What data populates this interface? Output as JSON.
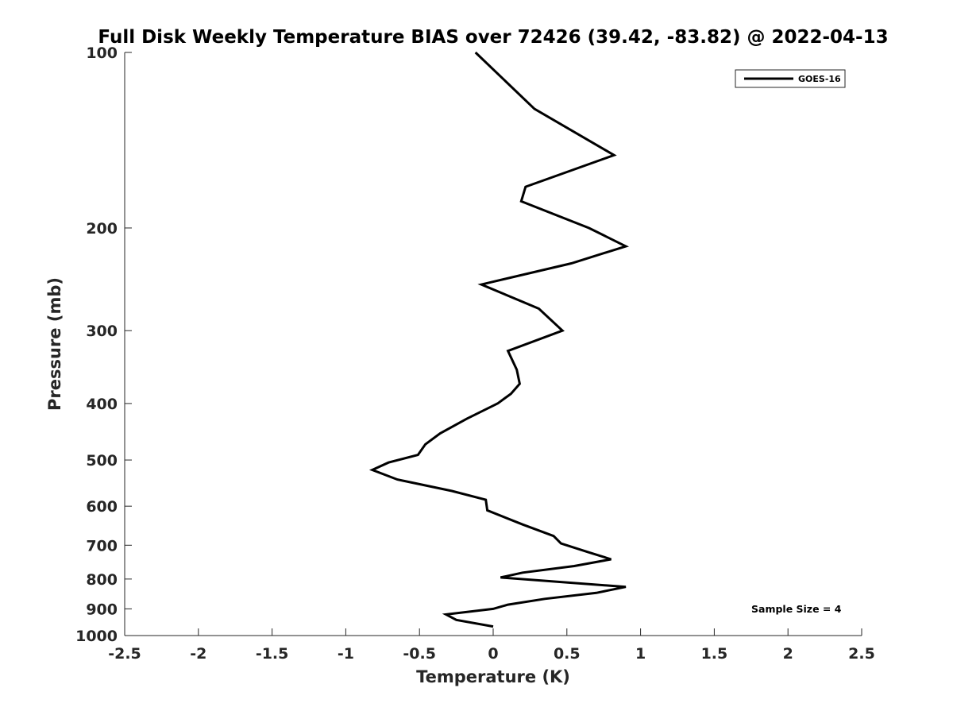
{
  "chart_data": {
    "type": "line",
    "title": "Full Disk Weekly Temperature BIAS over 72426 (39.42, -83.82) @ 2022-04-13",
    "xlabel": "Temperature (K)",
    "ylabel": "Pressure (mb)",
    "xlim": [
      -2.5,
      2.5
    ],
    "ylim": [
      100,
      1000
    ],
    "y_scale": "log",
    "y_reversed": true,
    "x_ticks": [
      "-2.5",
      "-2",
      "-1.5",
      "-1",
      "-0.5",
      "0",
      "0.5",
      "1",
      "1.5",
      "2",
      "2.5"
    ],
    "y_ticks": [
      "100",
      "200",
      "300",
      "400",
      "500",
      "600",
      "700",
      "800",
      "900",
      "1000"
    ],
    "grid": false,
    "legend": {
      "position": "top-right",
      "entries": [
        "GOES-16"
      ]
    },
    "annotation": "Sample Size = 4",
    "series": [
      {
        "name": "GOES-16",
        "color": "#000000",
        "points": [
          {
            "x": -0.12,
            "y": 100
          },
          {
            "x": 0.28,
            "y": 125
          },
          {
            "x": 0.82,
            "y": 150
          },
          {
            "x": 0.22,
            "y": 170
          },
          {
            "x": 0.19,
            "y": 180
          },
          {
            "x": 0.65,
            "y": 200
          },
          {
            "x": 0.9,
            "y": 215
          },
          {
            "x": 0.53,
            "y": 230
          },
          {
            "x": -0.08,
            "y": 250
          },
          {
            "x": 0.31,
            "y": 275
          },
          {
            "x": 0.47,
            "y": 300
          },
          {
            "x": 0.1,
            "y": 325
          },
          {
            "x": 0.16,
            "y": 350
          },
          {
            "x": 0.18,
            "y": 370
          },
          {
            "x": 0.12,
            "y": 385
          },
          {
            "x": 0.03,
            "y": 400
          },
          {
            "x": -0.18,
            "y": 425
          },
          {
            "x": -0.36,
            "y": 450
          },
          {
            "x": -0.46,
            "y": 470
          },
          {
            "x": -0.51,
            "y": 490
          },
          {
            "x": -0.71,
            "y": 505
          },
          {
            "x": -0.82,
            "y": 520
          },
          {
            "x": -0.65,
            "y": 540
          },
          {
            "x": -0.28,
            "y": 565
          },
          {
            "x": -0.05,
            "y": 585
          },
          {
            "x": -0.04,
            "y": 610
          },
          {
            "x": 0.2,
            "y": 645
          },
          {
            "x": 0.41,
            "y": 675
          },
          {
            "x": 0.46,
            "y": 695
          },
          {
            "x": 0.65,
            "y": 720
          },
          {
            "x": 0.8,
            "y": 740
          },
          {
            "x": 0.55,
            "y": 760
          },
          {
            "x": 0.2,
            "y": 780
          },
          {
            "x": 0.05,
            "y": 795
          },
          {
            "x": 0.9,
            "y": 825
          },
          {
            "x": 0.7,
            "y": 845
          },
          {
            "x": 0.35,
            "y": 865
          },
          {
            "x": 0.1,
            "y": 885
          },
          {
            "x": 0.0,
            "y": 900
          },
          {
            "x": -0.32,
            "y": 920
          },
          {
            "x": -0.25,
            "y": 940
          },
          {
            "x": 0.0,
            "y": 965
          }
        ]
      }
    ]
  }
}
